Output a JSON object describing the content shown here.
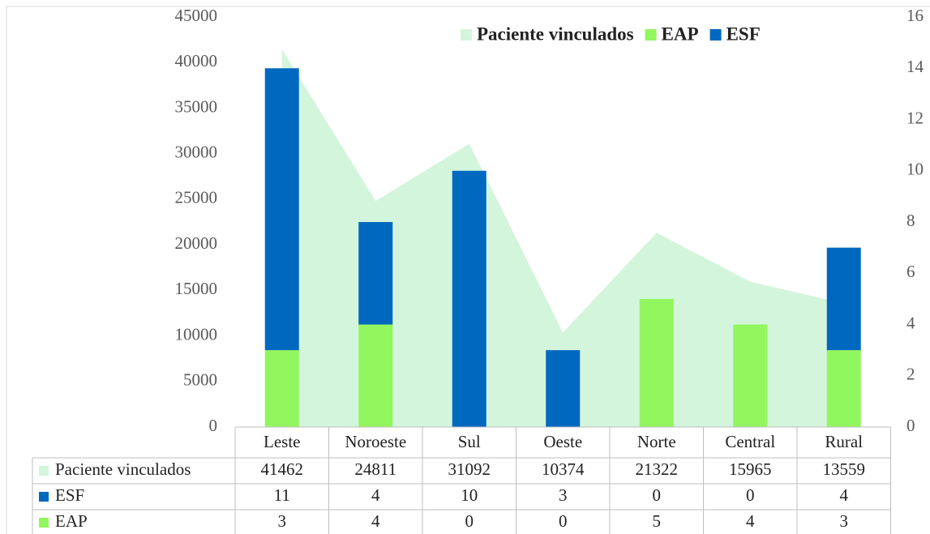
{
  "chart_data": {
    "type": "combo",
    "stacked": true,
    "categories": [
      "Leste",
      "Noroeste",
      "Sul",
      "Oeste",
      "Norte",
      "Central",
      "Rural"
    ],
    "series": [
      {
        "name": "Paciente vinculados",
        "type": "area",
        "color": "#d3f5dc",
        "values": [
          41462,
          24811,
          31092,
          10374,
          21322,
          15965,
          13559
        ]
      },
      {
        "name": "EAP",
        "type": "bar",
        "axis": "y2",
        "color": "#92f65e",
        "values": [
          3,
          4,
          0,
          0,
          5,
          4,
          3
        ]
      },
      {
        "name": "ESF",
        "type": "bar",
        "axis": "y2",
        "color": "#0068bf",
        "values": [
          11,
          4,
          10,
          3,
          0,
          0,
          4
        ]
      }
    ],
    "table_order": [
      0,
      2,
      1
    ],
    "ylim": [
      0,
      45000
    ],
    "yticks": [
      0,
      5000,
      10000,
      15000,
      20000,
      25000,
      30000,
      35000,
      40000,
      45000
    ],
    "y2lim": [
      0,
      16
    ],
    "y2ticks": [
      0,
      2,
      4,
      6,
      8,
      10,
      12,
      14,
      16
    ],
    "legend": "top-right"
  }
}
